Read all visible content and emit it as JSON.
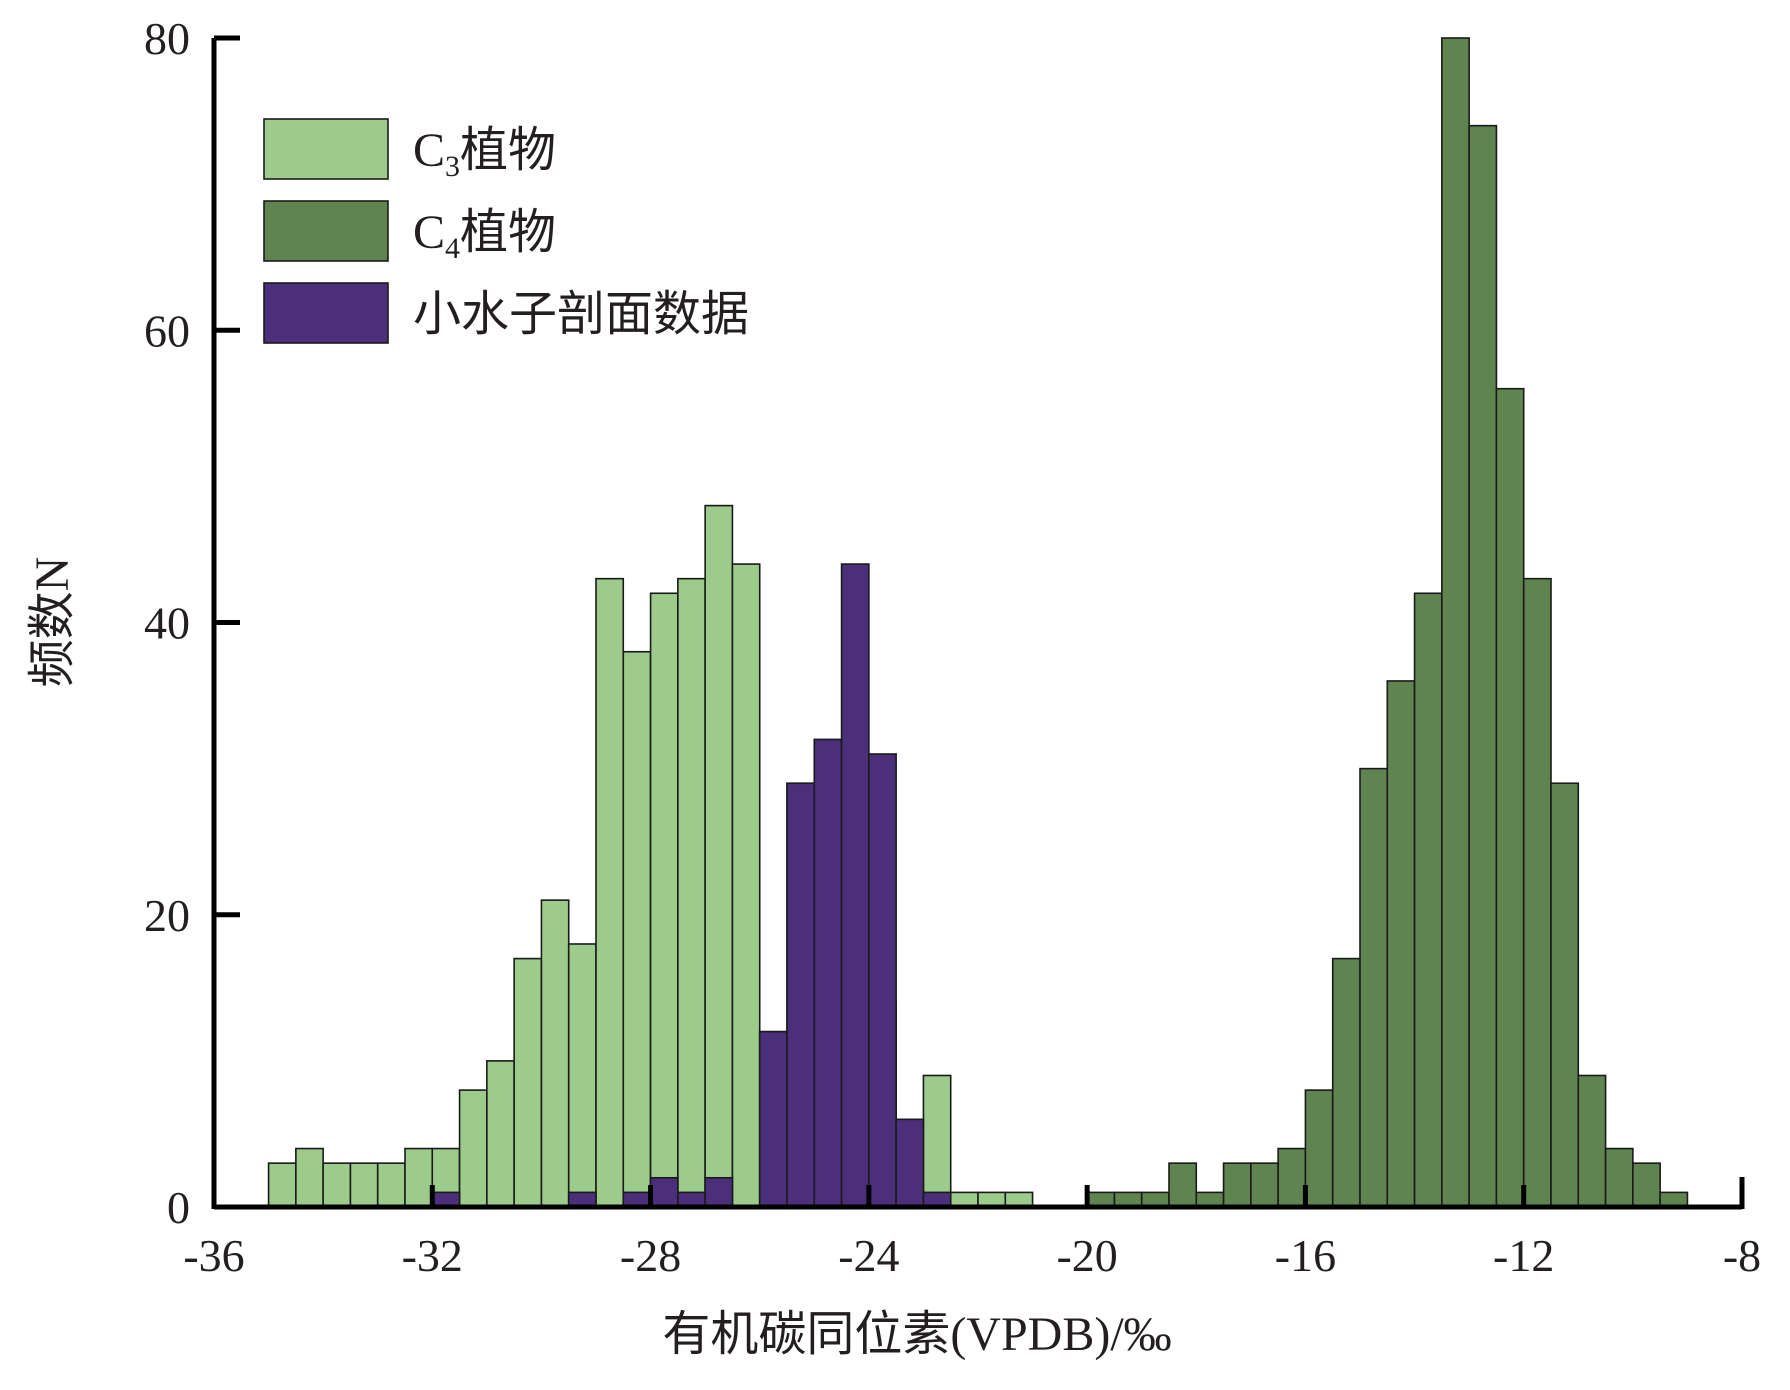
{
  "chart_data": {
    "type": "bar",
    "title": "",
    "xlabel": "有机碳同位素(VPDB)/‰",
    "ylabel": "频数N",
    "xlim": [
      -36,
      -8
    ],
    "ylim": [
      0,
      80
    ],
    "x_ticks": [
      -36,
      -32,
      -28,
      -24,
      -20,
      -16,
      -12,
      -8
    ],
    "x_tick_labels": [
      "-36",
      "-32",
      "-28",
      "-24",
      "-20",
      "-16",
      "-12",
      "-8"
    ],
    "y_ticks": [
      0,
      20,
      40,
      60,
      80
    ],
    "y_tick_labels": [
      "0",
      "20",
      "40",
      "60",
      "80"
    ],
    "bin_width": 0.5,
    "grid": false,
    "legend_position": "top-left",
    "series": [
      {
        "name": "C3植物",
        "legend": {
          "base": "C",
          "sub": "3",
          "suffix": "植物"
        },
        "color": "#9dcb8c",
        "bins": [
          [
            -34.75,
            3
          ],
          [
            -34.25,
            4
          ],
          [
            -33.75,
            3
          ],
          [
            -33.25,
            3
          ],
          [
            -32.75,
            3
          ],
          [
            -32.25,
            4
          ],
          [
            -31.75,
            4
          ],
          [
            -31.25,
            8
          ],
          [
            -30.75,
            10
          ],
          [
            -30.25,
            17
          ],
          [
            -29.75,
            21
          ],
          [
            -29.25,
            18
          ],
          [
            -28.75,
            43
          ],
          [
            -28.25,
            38
          ],
          [
            -27.75,
            42
          ],
          [
            -27.25,
            43
          ],
          [
            -26.75,
            48
          ],
          [
            -26.25,
            44
          ],
          [
            -25.75,
            12
          ],
          [
            -25.25,
            29
          ],
          [
            -24.75,
            13
          ],
          [
            -24.25,
            12
          ],
          [
            -23.75,
            14
          ],
          [
            -23.25,
            4
          ],
          [
            -22.75,
            9
          ],
          [
            -22.25,
            1
          ],
          [
            -21.75,
            1
          ],
          [
            -21.25,
            1
          ]
        ]
      },
      {
        "name": "C4植物",
        "legend": {
          "base": "C",
          "sub": "4",
          "suffix": "植物"
        },
        "color": "#5f8450",
        "bins": [
          [
            -19.75,
            1
          ],
          [
            -19.25,
            1
          ],
          [
            -18.75,
            1
          ],
          [
            -18.25,
            3
          ],
          [
            -17.75,
            1
          ],
          [
            -17.25,
            3
          ],
          [
            -16.75,
            3
          ],
          [
            -16.25,
            4
          ],
          [
            -15.75,
            8
          ],
          [
            -15.25,
            17
          ],
          [
            -14.75,
            30
          ],
          [
            -14.25,
            36
          ],
          [
            -13.75,
            42
          ],
          [
            -13.25,
            80
          ],
          [
            -12.75,
            74
          ],
          [
            -12.25,
            56
          ],
          [
            -11.75,
            43
          ],
          [
            -11.25,
            29
          ],
          [
            -10.75,
            9
          ],
          [
            -10.25,
            4
          ],
          [
            -9.75,
            3
          ],
          [
            -9.25,
            1
          ]
        ]
      },
      {
        "name": "小水子剖面数据",
        "color": "#4b2f7a",
        "bins": [
          [
            -31.75,
            1
          ],
          [
            -29.25,
            1
          ],
          [
            -28.25,
            1
          ],
          [
            -27.75,
            2
          ],
          [
            -27.25,
            1
          ],
          [
            -26.75,
            2
          ],
          [
            -25.75,
            12
          ],
          [
            -25.25,
            29
          ],
          [
            -24.75,
            32
          ],
          [
            -24.25,
            44
          ],
          [
            -23.75,
            31
          ],
          [
            -23.25,
            6
          ],
          [
            -22.75,
            1
          ]
        ]
      }
    ]
  }
}
